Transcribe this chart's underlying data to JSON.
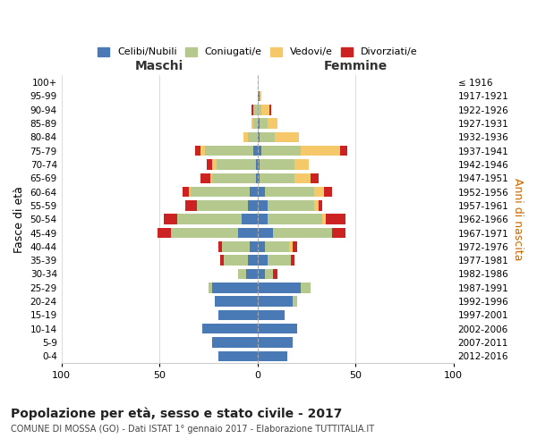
{
  "age_groups": [
    "0-4",
    "5-9",
    "10-14",
    "15-19",
    "20-24",
    "25-29",
    "30-34",
    "35-39",
    "40-44",
    "45-49",
    "50-54",
    "55-59",
    "60-64",
    "65-69",
    "70-74",
    "75-79",
    "80-84",
    "85-89",
    "90-94",
    "95-99",
    "100+"
  ],
  "birth_years": [
    "2012-2016",
    "2007-2011",
    "2002-2006",
    "1997-2001",
    "1992-1996",
    "1987-1991",
    "1982-1986",
    "1977-1981",
    "1972-1976",
    "1967-1971",
    "1962-1966",
    "1957-1961",
    "1952-1956",
    "1947-1951",
    "1942-1946",
    "1937-1941",
    "1932-1936",
    "1927-1931",
    "1922-1926",
    "1917-1921",
    "≤ 1916"
  ],
  "maschi": {
    "celibi": [
      20,
      23,
      28,
      20,
      22,
      23,
      6,
      5,
      4,
      10,
      8,
      5,
      4,
      1,
      1,
      2,
      0,
      0,
      0,
      0,
      0
    ],
    "coniugati": [
      0,
      0,
      0,
      0,
      0,
      2,
      4,
      12,
      14,
      34,
      33,
      26,
      30,
      22,
      20,
      25,
      5,
      2,
      2,
      0,
      0
    ],
    "vedovi": [
      0,
      0,
      0,
      0,
      0,
      0,
      0,
      0,
      0,
      0,
      0,
      0,
      1,
      1,
      2,
      2,
      2,
      1,
      0,
      0,
      0
    ],
    "divorziati": [
      0,
      0,
      0,
      0,
      0,
      0,
      0,
      2,
      2,
      7,
      7,
      6,
      3,
      5,
      3,
      3,
      0,
      0,
      1,
      0,
      0
    ]
  },
  "femmine": {
    "nubili": [
      15,
      18,
      20,
      14,
      18,
      22,
      4,
      5,
      4,
      8,
      5,
      5,
      4,
      1,
      1,
      2,
      1,
      1,
      0,
      1,
      0
    ],
    "coniugate": [
      0,
      0,
      0,
      0,
      2,
      5,
      4,
      12,
      12,
      30,
      28,
      24,
      25,
      18,
      18,
      20,
      8,
      4,
      2,
      0,
      0
    ],
    "vedove": [
      0,
      0,
      0,
      0,
      0,
      0,
      0,
      0,
      2,
      0,
      2,
      2,
      5,
      8,
      7,
      20,
      12,
      5,
      4,
      1,
      0
    ],
    "divorziate": [
      0,
      0,
      0,
      0,
      0,
      0,
      2,
      2,
      2,
      7,
      10,
      2,
      4,
      4,
      0,
      4,
      0,
      0,
      1,
      0,
      0
    ]
  },
  "colors": {
    "celibi": "#4a7ab5",
    "coniugati": "#b5c98e",
    "vedovi": "#f5c96a",
    "divorziati": "#cc2222"
  },
  "title": "Popolazione per età, sesso e stato civile - 2017",
  "subtitle": "COMUNE DI MOSSA (GO) - Dati ISTAT 1° gennaio 2017 - Elaborazione TUTTITALIA.IT",
  "xlabel_left": "Maschi",
  "xlabel_right": "Femmine",
  "ylabel_left": "Fasce di età",
  "ylabel_right": "Anni di nascita",
  "xlim": 100,
  "legend_labels": [
    "Celibi/Nubili",
    "Coniugati/e",
    "Vedovi/e",
    "Divorziati/e"
  ]
}
